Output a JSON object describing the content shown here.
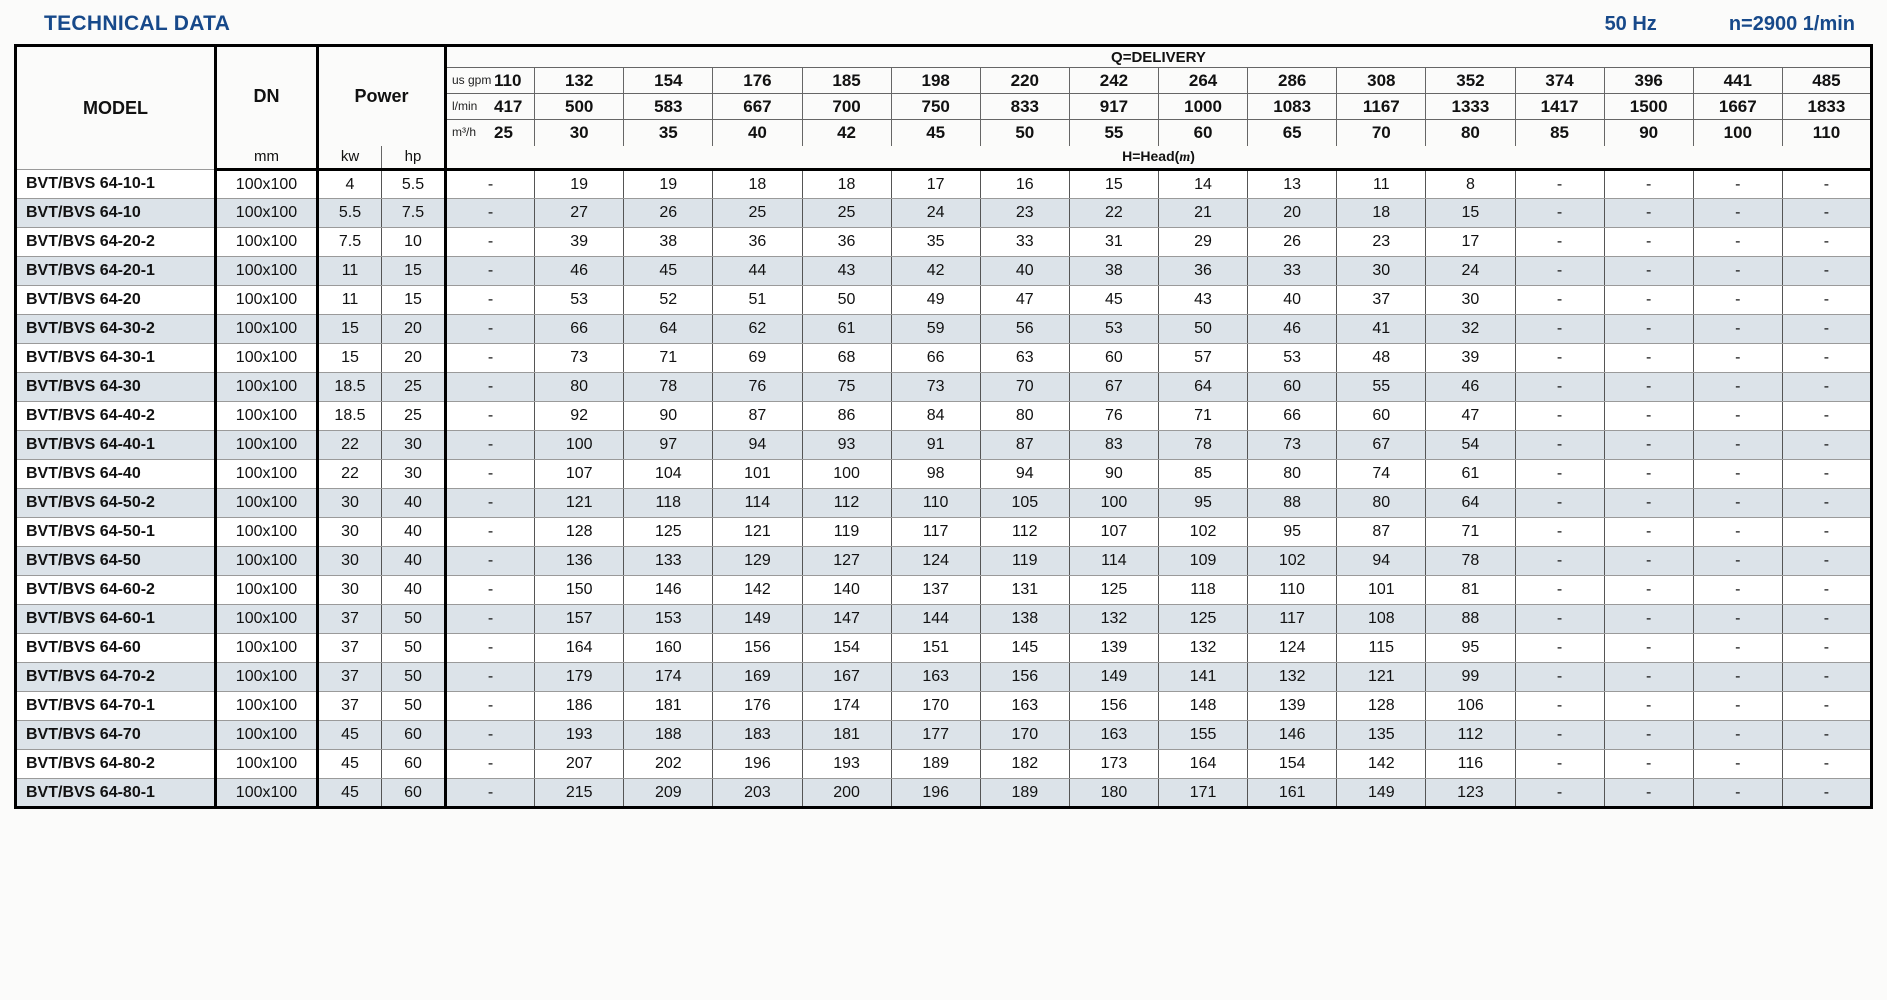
{
  "page": {
    "title": "TECHNICAL DATA",
    "frequency": "50 Hz",
    "speed": "n=2900 1/min"
  },
  "colors": {
    "accent_blue": "#17498a",
    "row_alt": "#dce3e9",
    "border": "#000000"
  },
  "table": {
    "headers": {
      "model": "MODEL",
      "dn": "DN",
      "dn_unit": "mm",
      "power": "Power",
      "power_units": [
        "kw",
        "hp"
      ],
      "delivery": "Q=DELIVERY",
      "head_prefix": "H=Head(",
      "head_unit": "m",
      "head_suffix": ")",
      "flow_units": [
        "us gpm",
        "l/min",
        "m³/h"
      ],
      "gpm": [
        "110",
        "132",
        "154",
        "176",
        "185",
        "198",
        "220",
        "242",
        "264",
        "286",
        "308",
        "352",
        "374",
        "396",
        "441",
        "485"
      ],
      "lmin": [
        "417",
        "500",
        "583",
        "667",
        "700",
        "750",
        "833",
        "917",
        "1000",
        "1083",
        "1167",
        "1333",
        "1417",
        "1500",
        "1667",
        "1833"
      ],
      "m3h": [
        "25",
        "30",
        "35",
        "40",
        "42",
        "45",
        "50",
        "55",
        "60",
        "65",
        "70",
        "80",
        "85",
        "90",
        "100",
        "110"
      ]
    },
    "rows": [
      {
        "model": "BVT/BVS 64-10-1",
        "dn": "100x100",
        "kw": "4",
        "hp": "5.5",
        "heads": [
          "-",
          "19",
          "19",
          "18",
          "18",
          "17",
          "16",
          "15",
          "14",
          "13",
          "11",
          "8",
          "-",
          "-",
          "-",
          "-"
        ]
      },
      {
        "model": "BVT/BVS 64-10",
        "dn": "100x100",
        "kw": "5.5",
        "hp": "7.5",
        "heads": [
          "-",
          "27",
          "26",
          "25",
          "25",
          "24",
          "23",
          "22",
          "21",
          "20",
          "18",
          "15",
          "-",
          "-",
          "-",
          "-"
        ]
      },
      {
        "model": "BVT/BVS 64-20-2",
        "dn": "100x100",
        "kw": "7.5",
        "hp": "10",
        "heads": [
          "-",
          "39",
          "38",
          "36",
          "36",
          "35",
          "33",
          "31",
          "29",
          "26",
          "23",
          "17",
          "-",
          "-",
          "-",
          "-"
        ]
      },
      {
        "model": "BVT/BVS 64-20-1",
        "dn": "100x100",
        "kw": "11",
        "hp": "15",
        "heads": [
          "-",
          "46",
          "45",
          "44",
          "43",
          "42",
          "40",
          "38",
          "36",
          "33",
          "30",
          "24",
          "-",
          "-",
          "-",
          "-"
        ]
      },
      {
        "model": "BVT/BVS 64-20",
        "dn": "100x100",
        "kw": "11",
        "hp": "15",
        "heads": [
          "-",
          "53",
          "52",
          "51",
          "50",
          "49",
          "47",
          "45",
          "43",
          "40",
          "37",
          "30",
          "-",
          "-",
          "-",
          "-"
        ]
      },
      {
        "model": "BVT/BVS 64-30-2",
        "dn": "100x100",
        "kw": "15",
        "hp": "20",
        "heads": [
          "-",
          "66",
          "64",
          "62",
          "61",
          "59",
          "56",
          "53",
          "50",
          "46",
          "41",
          "32",
          "-",
          "-",
          "-",
          "-"
        ]
      },
      {
        "model": "BVT/BVS 64-30-1",
        "dn": "100x100",
        "kw": "15",
        "hp": "20",
        "heads": [
          "-",
          "73",
          "71",
          "69",
          "68",
          "66",
          "63",
          "60",
          "57",
          "53",
          "48",
          "39",
          "-",
          "-",
          "-",
          "-"
        ]
      },
      {
        "model": "BVT/BVS 64-30",
        "dn": "100x100",
        "kw": "18.5",
        "hp": "25",
        "heads": [
          "-",
          "80",
          "78",
          "76",
          "75",
          "73",
          "70",
          "67",
          "64",
          "60",
          "55",
          "46",
          "-",
          "-",
          "-",
          "-"
        ]
      },
      {
        "model": "BVT/BVS 64-40-2",
        "dn": "100x100",
        "kw": "18.5",
        "hp": "25",
        "heads": [
          "-",
          "92",
          "90",
          "87",
          "86",
          "84",
          "80",
          "76",
          "71",
          "66",
          "60",
          "47",
          "-",
          "-",
          "-",
          "-"
        ]
      },
      {
        "model": "BVT/BVS 64-40-1",
        "dn": "100x100",
        "kw": "22",
        "hp": "30",
        "heads": [
          "-",
          "100",
          "97",
          "94",
          "93",
          "91",
          "87",
          "83",
          "78",
          "73",
          "67",
          "54",
          "-",
          "-",
          "-",
          "-"
        ]
      },
      {
        "model": "BVT/BVS 64-40",
        "dn": "100x100",
        "kw": "22",
        "hp": "30",
        "heads": [
          "-",
          "107",
          "104",
          "101",
          "100",
          "98",
          "94",
          "90",
          "85",
          "80",
          "74",
          "61",
          "-",
          "-",
          "-",
          "-"
        ]
      },
      {
        "model": "BVT/BVS 64-50-2",
        "dn": "100x100",
        "kw": "30",
        "hp": "40",
        "heads": [
          "-",
          "121",
          "118",
          "114",
          "112",
          "110",
          "105",
          "100",
          "95",
          "88",
          "80",
          "64",
          "-",
          "-",
          "-",
          "-"
        ]
      },
      {
        "model": "BVT/BVS 64-50-1",
        "dn": "100x100",
        "kw": "30",
        "hp": "40",
        "heads": [
          "-",
          "128",
          "125",
          "121",
          "119",
          "117",
          "112",
          "107",
          "102",
          "95",
          "87",
          "71",
          "-",
          "-",
          "-",
          "-"
        ]
      },
      {
        "model": "BVT/BVS 64-50",
        "dn": "100x100",
        "kw": "30",
        "hp": "40",
        "heads": [
          "-",
          "136",
          "133",
          "129",
          "127",
          "124",
          "119",
          "114",
          "109",
          "102",
          "94",
          "78",
          "-",
          "-",
          "-",
          "-"
        ]
      },
      {
        "model": "BVT/BVS 64-60-2",
        "dn": "100x100",
        "kw": "30",
        "hp": "40",
        "heads": [
          "-",
          "150",
          "146",
          "142",
          "140",
          "137",
          "131",
          "125",
          "118",
          "110",
          "101",
          "81",
          "-",
          "-",
          "-",
          "-"
        ]
      },
      {
        "model": "BVT/BVS 64-60-1",
        "dn": "100x100",
        "kw": "37",
        "hp": "50",
        "heads": [
          "-",
          "157",
          "153",
          "149",
          "147",
          "144",
          "138",
          "132",
          "125",
          "117",
          "108",
          "88",
          "-",
          "-",
          "-",
          "-"
        ]
      },
      {
        "model": "BVT/BVS 64-60",
        "dn": "100x100",
        "kw": "37",
        "hp": "50",
        "heads": [
          "-",
          "164",
          "160",
          "156",
          "154",
          "151",
          "145",
          "139",
          "132",
          "124",
          "115",
          "95",
          "-",
          "-",
          "-",
          "-"
        ]
      },
      {
        "model": "BVT/BVS 64-70-2",
        "dn": "100x100",
        "kw": "37",
        "hp": "50",
        "heads": [
          "-",
          "179",
          "174",
          "169",
          "167",
          "163",
          "156",
          "149",
          "141",
          "132",
          "121",
          "99",
          "-",
          "-",
          "-",
          "-"
        ]
      },
      {
        "model": "BVT/BVS 64-70-1",
        "dn": "100x100",
        "kw": "37",
        "hp": "50",
        "heads": [
          "-",
          "186",
          "181",
          "176",
          "174",
          "170",
          "163",
          "156",
          "148",
          "139",
          "128",
          "106",
          "-",
          "-",
          "-",
          "-"
        ]
      },
      {
        "model": "BVT/BVS 64-70",
        "dn": "100x100",
        "kw": "45",
        "hp": "60",
        "heads": [
          "-",
          "193",
          "188",
          "183",
          "181",
          "177",
          "170",
          "163",
          "155",
          "146",
          "135",
          "112",
          "-",
          "-",
          "-",
          "-"
        ]
      },
      {
        "model": "BVT/BVS 64-80-2",
        "dn": "100x100",
        "kw": "45",
        "hp": "60",
        "heads": [
          "-",
          "207",
          "202",
          "196",
          "193",
          "189",
          "182",
          "173",
          "164",
          "154",
          "142",
          "116",
          "-",
          "-",
          "-",
          "-"
        ]
      },
      {
        "model": "BVT/BVS 64-80-1",
        "dn": "100x100",
        "kw": "45",
        "hp": "60",
        "heads": [
          "-",
          "215",
          "209",
          "203",
          "200",
          "196",
          "189",
          "180",
          "171",
          "161",
          "149",
          "123",
          "-",
          "-",
          "-",
          "-"
        ]
      }
    ]
  }
}
